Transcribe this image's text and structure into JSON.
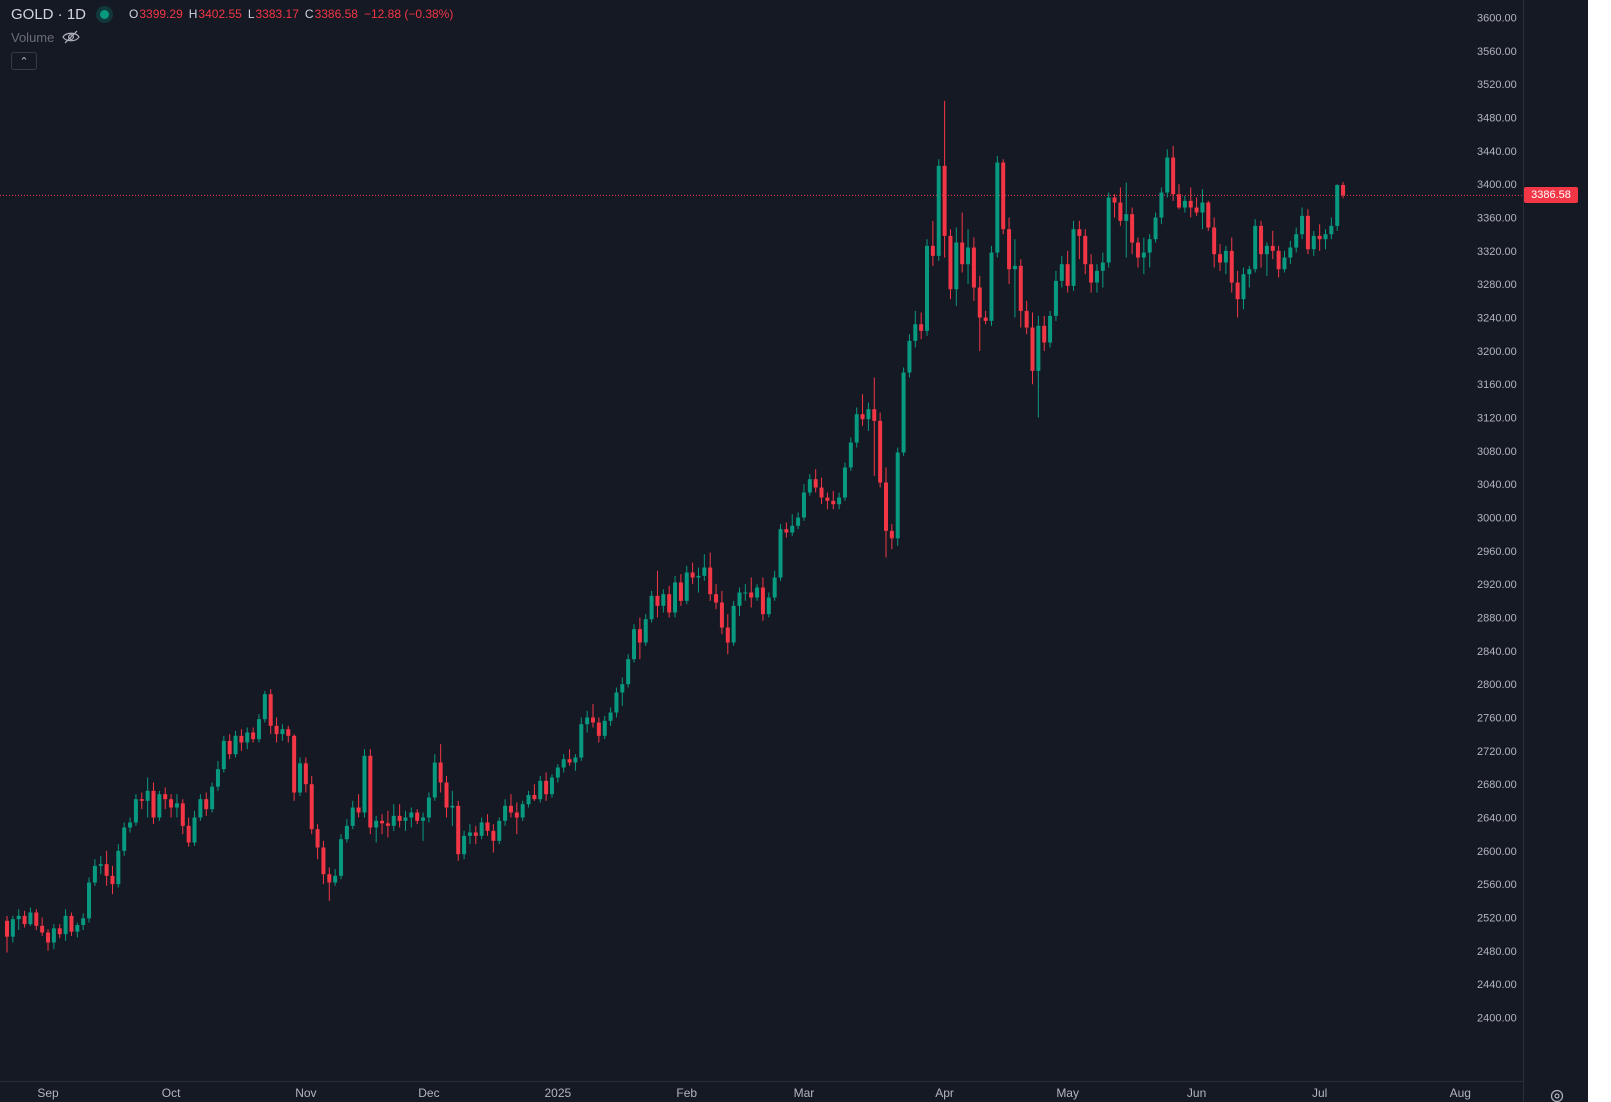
{
  "legend": {
    "symbol": "GOLD · 1D",
    "open_label": "O",
    "open_value": "3399.29",
    "high_label": "H",
    "high_value": "3402.55",
    "low_label": "L",
    "low_value": "3383.17",
    "close_label": "C",
    "close_value": "3386.58",
    "change": "−12.88 (−0.38%)",
    "volume_label": "Volume"
  },
  "last_price_tag": "3386.58",
  "colors": {
    "up": "#089981",
    "down": "#f23645",
    "background": "#151924",
    "axis_text": "#b2b5be"
  },
  "chart_data": {
    "type": "candlestick",
    "symbol": "GOLD",
    "interval": "1D",
    "last_price": 3386.58,
    "y_axis_side": "right",
    "ylim": [
      2380,
      3620
    ],
    "y_ticks": [
      2400,
      2440,
      2480,
      2520,
      2560,
      2600,
      2640,
      2680,
      2720,
      2760,
      2800,
      2840,
      2880,
      2920,
      2960,
      3000,
      3040,
      3080,
      3120,
      3160,
      3200,
      3240,
      3280,
      3320,
      3360,
      3400,
      3440,
      3480,
      3520,
      3560,
      3600
    ],
    "x_labels": [
      {
        "label": "Sep",
        "index": 7
      },
      {
        "label": "Oct",
        "index": 28
      },
      {
        "label": "Nov",
        "index": 51
      },
      {
        "label": "Dec",
        "index": 72
      },
      {
        "label": "2025",
        "index": 94
      },
      {
        "label": "Feb",
        "index": 116
      },
      {
        "label": "Mar",
        "index": 136
      },
      {
        "label": "Apr",
        "index": 160
      },
      {
        "label": "May",
        "index": 181
      },
      {
        "label": "Jun",
        "index": 203
      },
      {
        "label": "Jul",
        "index": 224
      },
      {
        "label": "Aug",
        "index": 248
      }
    ],
    "candles": [
      [
        2516,
        2522,
        2478,
        2497
      ],
      [
        2497,
        2522,
        2490,
        2518
      ],
      [
        2518,
        2530,
        2505,
        2522
      ],
      [
        2522,
        2528,
        2508,
        2512
      ],
      [
        2512,
        2532,
        2510,
        2526
      ],
      [
        2526,
        2530,
        2505,
        2510
      ],
      [
        2510,
        2520,
        2498,
        2502
      ],
      [
        2502,
        2506,
        2480,
        2490
      ],
      [
        2490,
        2512,
        2482,
        2507
      ],
      [
        2507,
        2512,
        2495,
        2500
      ],
      [
        2500,
        2530,
        2492,
        2522
      ],
      [
        2522,
        2526,
        2498,
        2503
      ],
      [
        2503,
        2514,
        2496,
        2511
      ],
      [
        2511,
        2525,
        2505,
        2519
      ],
      [
        2519,
        2568,
        2514,
        2562
      ],
      [
        2562,
        2590,
        2558,
        2582
      ],
      [
        2582,
        2594,
        2572,
        2584
      ],
      [
        2584,
        2600,
        2558,
        2570
      ],
      [
        2570,
        2582,
        2548,
        2560
      ],
      [
        2560,
        2608,
        2556,
        2600
      ],
      [
        2600,
        2634,
        2594,
        2628
      ],
      [
        2628,
        2640,
        2622,
        2634
      ],
      [
        2634,
        2668,
        2630,
        2662
      ],
      [
        2662,
        2670,
        2650,
        2660
      ],
      [
        2660,
        2688,
        2640,
        2672
      ],
      [
        2672,
        2682,
        2632,
        2640
      ],
      [
        2640,
        2672,
        2636,
        2668
      ],
      [
        2668,
        2676,
        2650,
        2662
      ],
      [
        2662,
        2668,
        2640,
        2652
      ],
      [
        2652,
        2668,
        2640,
        2657
      ],
      [
        2657,
        2662,
        2620,
        2630
      ],
      [
        2630,
        2640,
        2605,
        2610
      ],
      [
        2610,
        2648,
        2606,
        2640
      ],
      [
        2640,
        2668,
        2636,
        2662
      ],
      [
        2662,
        2670,
        2642,
        2650
      ],
      [
        2650,
        2682,
        2646,
        2677
      ],
      [
        2677,
        2708,
        2672,
        2698
      ],
      [
        2698,
        2738,
        2694,
        2732
      ],
      [
        2732,
        2740,
        2710,
        2716
      ],
      [
        2716,
        2744,
        2712,
        2738
      ],
      [
        2738,
        2746,
        2720,
        2730
      ],
      [
        2730,
        2748,
        2722,
        2742
      ],
      [
        2742,
        2748,
        2730,
        2734
      ],
      [
        2734,
        2764,
        2730,
        2758
      ],
      [
        2758,
        2792,
        2754,
        2788
      ],
      [
        2788,
        2794,
        2740,
        2750
      ],
      [
        2750,
        2760,
        2730,
        2740
      ],
      [
        2740,
        2752,
        2732,
        2746
      ],
      [
        2746,
        2750,
        2730,
        2738
      ],
      [
        2738,
        2740,
        2660,
        2670
      ],
      [
        2670,
        2712,
        2666,
        2705
      ],
      [
        2705,
        2712,
        2670,
        2680
      ],
      [
        2680,
        2690,
        2620,
        2626
      ],
      [
        2626,
        2632,
        2590,
        2604
      ],
      [
        2604,
        2612,
        2560,
        2572
      ],
      [
        2572,
        2580,
        2540,
        2562
      ],
      [
        2562,
        2578,
        2558,
        2570
      ],
      [
        2570,
        2620,
        2566,
        2614
      ],
      [
        2614,
        2638,
        2610,
        2630
      ],
      [
        2630,
        2660,
        2626,
        2652
      ],
      [
        2652,
        2668,
        2640,
        2646
      ],
      [
        2646,
        2722,
        2640,
        2714
      ],
      [
        2714,
        2722,
        2620,
        2628
      ],
      [
        2628,
        2642,
        2610,
        2636
      ],
      [
        2636,
        2644,
        2620,
        2633
      ],
      [
        2633,
        2648,
        2616,
        2630
      ],
      [
        2630,
        2656,
        2624,
        2642
      ],
      [
        2642,
        2656,
        2628,
        2636
      ],
      [
        2636,
        2648,
        2624,
        2640
      ],
      [
        2640,
        2652,
        2628,
        2646
      ],
      [
        2646,
        2650,
        2632,
        2636
      ],
      [
        2636,
        2646,
        2612,
        2640
      ],
      [
        2640,
        2670,
        2634,
        2664
      ],
      [
        2664,
        2716,
        2660,
        2706
      ],
      [
        2706,
        2728,
        2670,
        2682
      ],
      [
        2682,
        2690,
        2640,
        2652
      ],
      [
        2652,
        2672,
        2630,
        2654
      ],
      [
        2654,
        2660,
        2588,
        2596
      ],
      [
        2596,
        2624,
        2590,
        2618
      ],
      [
        2618,
        2632,
        2608,
        2622
      ],
      [
        2622,
        2630,
        2608,
        2618
      ],
      [
        2618,
        2640,
        2614,
        2634
      ],
      [
        2634,
        2644,
        2618,
        2624
      ],
      [
        2624,
        2632,
        2598,
        2612
      ],
      [
        2612,
        2640,
        2608,
        2636
      ],
      [
        2636,
        2662,
        2630,
        2654
      ],
      [
        2654,
        2668,
        2640,
        2646
      ],
      [
        2646,
        2658,
        2620,
        2640
      ],
      [
        2640,
        2660,
        2636,
        2656
      ],
      [
        2656,
        2672,
        2652,
        2667
      ],
      [
        2667,
        2680,
        2660,
        2662
      ],
      [
        2662,
        2690,
        2658,
        2684
      ],
      [
        2684,
        2694,
        2660,
        2668
      ],
      [
        2668,
        2692,
        2664,
        2688
      ],
      [
        2688,
        2704,
        2682,
        2700
      ],
      [
        2700,
        2716,
        2694,
        2710
      ],
      [
        2710,
        2722,
        2702,
        2706
      ],
      [
        2706,
        2716,
        2696,
        2712
      ],
      [
        2712,
        2760,
        2708,
        2752
      ],
      [
        2752,
        2768,
        2742,
        2760
      ],
      [
        2760,
        2776,
        2748,
        2754
      ],
      [
        2754,
        2760,
        2730,
        2738
      ],
      [
        2738,
        2762,
        2734,
        2756
      ],
      [
        2756,
        2772,
        2750,
        2766
      ],
      [
        2766,
        2796,
        2760,
        2790
      ],
      [
        2790,
        2808,
        2774,
        2800
      ],
      [
        2800,
        2836,
        2796,
        2830
      ],
      [
        2830,
        2872,
        2826,
        2866
      ],
      [
        2866,
        2880,
        2830,
        2850
      ],
      [
        2850,
        2884,
        2846,
        2878
      ],
      [
        2878,
        2912,
        2874,
        2906
      ],
      [
        2906,
        2936,
        2880,
        2894
      ],
      [
        2894,
        2914,
        2886,
        2908
      ],
      [
        2908,
        2918,
        2880,
        2886
      ],
      [
        2886,
        2930,
        2880,
        2922
      ],
      [
        2922,
        2932,
        2894,
        2900
      ],
      [
        2900,
        2942,
        2896,
        2934
      ],
      [
        2934,
        2946,
        2920,
        2928
      ],
      [
        2928,
        2940,
        2910,
        2930
      ],
      [
        2930,
        2956,
        2924,
        2940
      ],
      [
        2940,
        2958,
        2900,
        2908
      ],
      [
        2908,
        2920,
        2890,
        2898
      ],
      [
        2898,
        2912,
        2860,
        2868
      ],
      [
        2868,
        2884,
        2836,
        2850
      ],
      [
        2850,
        2900,
        2846,
        2894
      ],
      [
        2894,
        2916,
        2882,
        2910
      ],
      [
        2910,
        2920,
        2900,
        2910
      ],
      [
        2910,
        2928,
        2892,
        2904
      ],
      [
        2904,
        2920,
        2900,
        2916
      ],
      [
        2916,
        2928,
        2876,
        2884
      ],
      [
        2884,
        2910,
        2880,
        2904
      ],
      [
        2904,
        2936,
        2900,
        2928
      ],
      [
        2928,
        2992,
        2924,
        2986
      ],
      [
        2986,
        2994,
        2976,
        2982
      ],
      [
        2982,
        3004,
        2978,
        2990
      ],
      [
        2990,
        3006,
        2986,
        3000
      ],
      [
        3000,
        3040,
        2996,
        3030
      ],
      [
        3030,
        3052,
        3026,
        3046
      ],
      [
        3046,
        3058,
        3030,
        3036
      ],
      [
        3036,
        3048,
        3016,
        3024
      ],
      [
        3024,
        3030,
        3010,
        3020
      ],
      [
        3020,
        3032,
        3010,
        3016
      ],
      [
        3016,
        3030,
        3010,
        3024
      ],
      [
        3024,
        3066,
        3020,
        3060
      ],
      [
        3060,
        3096,
        3056,
        3090
      ],
      [
        3090,
        3132,
        3084,
        3124
      ],
      [
        3124,
        3148,
        3110,
        3118
      ],
      [
        3118,
        3138,
        3104,
        3130
      ],
      [
        3130,
        3168,
        3050,
        3116
      ],
      [
        3116,
        3126,
        3036,
        3042
      ],
      [
        3042,
        3060,
        2952,
        2984
      ],
      [
        2984,
        2992,
        2962,
        2975
      ],
      [
        2975,
        3084,
        2966,
        3078
      ],
      [
        3078,
        3180,
        3074,
        3174
      ],
      [
        3174,
        3220,
        3168,
        3212
      ],
      [
        3212,
        3248,
        3204,
        3232
      ],
      [
        3232,
        3246,
        3214,
        3224
      ],
      [
        3224,
        3334,
        3218,
        3326
      ],
      [
        3326,
        3356,
        3302,
        3314
      ],
      [
        3314,
        3430,
        3308,
        3422
      ],
      [
        3422,
        3500,
        3312,
        3338
      ],
      [
        3338,
        3346,
        3262,
        3274
      ],
      [
        3274,
        3348,
        3254,
        3330
      ],
      [
        3330,
        3366,
        3294,
        3304
      ],
      [
        3304,
        3346,
        3280,
        3324
      ],
      [
        3324,
        3336,
        3260,
        3276
      ],
      [
        3276,
        3290,
        3200,
        3240
      ],
      [
        3240,
        3248,
        3232,
        3236
      ],
      [
        3236,
        3326,
        3230,
        3318
      ],
      [
        3318,
        3434,
        3312,
        3426
      ],
      [
        3426,
        3430,
        3340,
        3346
      ],
      [
        3346,
        3360,
        3280,
        3298
      ],
      [
        3298,
        3334,
        3240,
        3302
      ],
      [
        3302,
        3310,
        3228,
        3248
      ],
      [
        3248,
        3260,
        3220,
        3228
      ],
      [
        3228,
        3246,
        3160,
        3176
      ],
      [
        3176,
        3242,
        3120,
        3230
      ],
      [
        3230,
        3242,
        3200,
        3210
      ],
      [
        3210,
        3248,
        3204,
        3242
      ],
      [
        3242,
        3296,
        3236,
        3284
      ],
      [
        3284,
        3314,
        3276,
        3304
      ],
      [
        3304,
        3320,
        3270,
        3278
      ],
      [
        3278,
        3356,
        3272,
        3346
      ],
      [
        3346,
        3356,
        3310,
        3338
      ],
      [
        3338,
        3346,
        3292,
        3304
      ],
      [
        3304,
        3316,
        3270,
        3282
      ],
      [
        3282,
        3304,
        3270,
        3296
      ],
      [
        3296,
        3318,
        3276,
        3306
      ],
      [
        3306,
        3390,
        3300,
        3384
      ],
      [
        3384,
        3388,
        3360,
        3378
      ],
      [
        3378,
        3396,
        3350,
        3356
      ],
      [
        3356,
        3402,
        3312,
        3364
      ],
      [
        3364,
        3372,
        3316,
        3330
      ],
      [
        3330,
        3336,
        3300,
        3312
      ],
      [
        3312,
        3336,
        3292,
        3318
      ],
      [
        3318,
        3340,
        3300,
        3334
      ],
      [
        3334,
        3366,
        3330,
        3360
      ],
      [
        3360,
        3396,
        3352,
        3390
      ],
      [
        3390,
        3442,
        3384,
        3432
      ],
      [
        3432,
        3446,
        3380,
        3388
      ],
      [
        3388,
        3400,
        3370,
        3372
      ],
      [
        3372,
        3386,
        3366,
        3380
      ],
      [
        3380,
        3396,
        3360,
        3372
      ],
      [
        3372,
        3384,
        3362,
        3366
      ],
      [
        3366,
        3394,
        3346,
        3378
      ],
      [
        3378,
        3380,
        3344,
        3348
      ],
      [
        3348,
        3360,
        3300,
        3316
      ],
      [
        3316,
        3328,
        3296,
        3306
      ],
      [
        3306,
        3326,
        3292,
        3320
      ],
      [
        3320,
        3336,
        3270,
        3282
      ],
      [
        3282,
        3296,
        3240,
        3262
      ],
      [
        3262,
        3300,
        3250,
        3292
      ],
      [
        3292,
        3302,
        3276,
        3298
      ],
      [
        3298,
        3358,
        3294,
        3350
      ],
      [
        3350,
        3356,
        3300,
        3316
      ],
      [
        3316,
        3330,
        3290,
        3326
      ],
      [
        3326,
        3344,
        3310,
        3320
      ],
      [
        3320,
        3326,
        3288,
        3298
      ],
      [
        3298,
        3320,
        3294,
        3312
      ],
      [
        3312,
        3332,
        3304,
        3324
      ],
      [
        3324,
        3348,
        3318,
        3340
      ],
      [
        3340,
        3372,
        3334,
        3362
      ],
      [
        3362,
        3370,
        3316,
        3322
      ],
      [
        3322,
        3344,
        3314,
        3338
      ],
      [
        3338,
        3352,
        3320,
        3334
      ],
      [
        3334,
        3346,
        3322,
        3340
      ],
      [
        3340,
        3360,
        3334,
        3350
      ],
      [
        3350,
        3400,
        3344,
        3399
      ],
      [
        3399,
        3402.55,
        3383.17,
        3386.58
      ]
    ]
  }
}
